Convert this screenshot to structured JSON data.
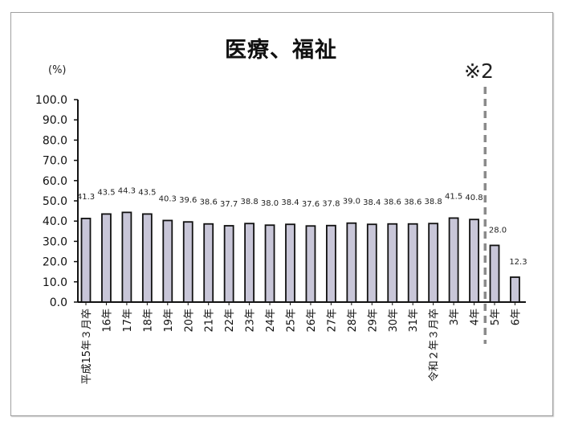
{
  "chart_data": {
    "type": "bar",
    "title": "医療、福祉",
    "ylabel": "(%)",
    "xlabel": "",
    "ylim": [
      0,
      100
    ],
    "yticks": [
      "0.0",
      "10.0",
      "20.0",
      "30.0",
      "40.0",
      "50.0",
      "60.0",
      "70.0",
      "80.0",
      "90.0",
      "100.0"
    ],
    "grid": false,
    "legend": null,
    "categories": [
      "平成15年３月卒",
      "16年",
      "17年",
      "18年",
      "19年",
      "20年",
      "21年",
      "22年",
      "23年",
      "24年",
      "25年",
      "26年",
      "27年",
      "28年",
      "29年",
      "30年",
      "31年",
      "令和２年３月卒",
      "3年",
      "4年",
      "5年",
      "6年"
    ],
    "values": [
      41.3,
      43.5,
      44.3,
      43.5,
      40.3,
      39.6,
      38.6,
      37.7,
      38.8,
      38.0,
      38.4,
      37.6,
      37.8,
      39.0,
      38.4,
      38.6,
      38.6,
      38.8,
      41.5,
      40.8,
      28.0,
      12.3
    ],
    "value_labels": [
      "41.3",
      "43.5",
      "44.3",
      "43.5",
      "40.3",
      "39.6",
      "38.6",
      "37.7",
      "38.8",
      "38.0",
      "38.4",
      "37.6",
      "37.8",
      "39.0",
      "38.4",
      "38.6",
      "38.6",
      "38.8",
      "41.5",
      "40.8",
      "28.0",
      "12.3"
    ],
    "annotations": [
      {
        "text": "※2",
        "type": "dashed-vertical-line",
        "position": "between 4年 and 5年"
      }
    ],
    "colors": {
      "bar_fill": "#c8c6d8",
      "bar_stroke": "#111111",
      "divider": "#8a8a8a"
    }
  },
  "header": {
    "title": "医療、福祉",
    "unit": "(%)",
    "note": "※2"
  }
}
